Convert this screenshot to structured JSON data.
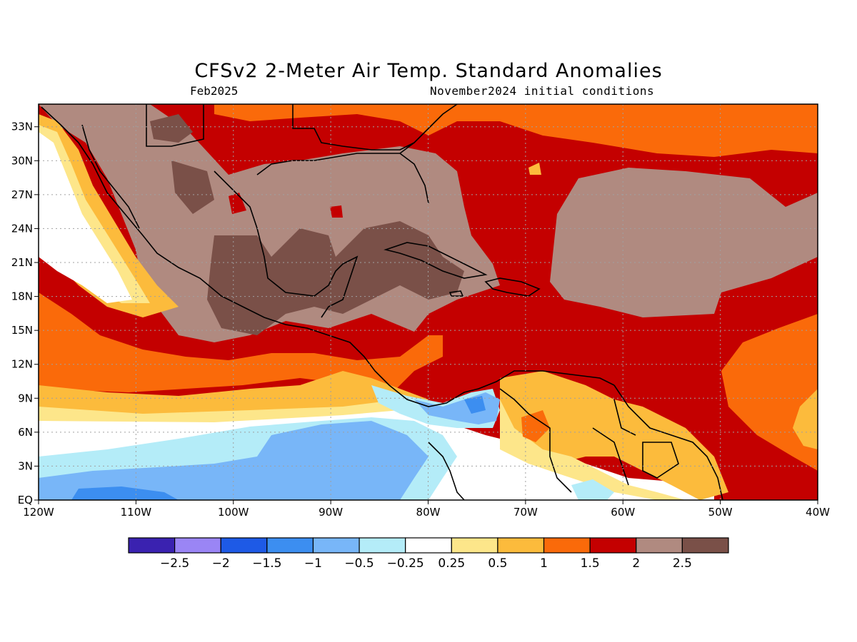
{
  "header": {
    "title": "CFSv2 2-Meter Air Temp. Standard Anomalies",
    "valid_month": "Feb2025",
    "initial_conditions": "November2024 initial conditions"
  },
  "map": {
    "lon_range": [
      -120,
      -40
    ],
    "lat_range": [
      0,
      35
    ],
    "x_ticks": [
      {
        "value": -120,
        "label": "120W"
      },
      {
        "value": -110,
        "label": "110W"
      },
      {
        "value": -100,
        "label": "100W"
      },
      {
        "value": -90,
        "label": "90W"
      },
      {
        "value": -80,
        "label": "80W"
      },
      {
        "value": -70,
        "label": "70W"
      },
      {
        "value": -60,
        "label": "60W"
      },
      {
        "value": -50,
        "label": "50W"
      },
      {
        "value": -40,
        "label": "40W"
      }
    ],
    "y_ticks": [
      {
        "value": 0,
        "label": "EQ"
      },
      {
        "value": 3,
        "label": "3N"
      },
      {
        "value": 6,
        "label": "6N"
      },
      {
        "value": 9,
        "label": "9N"
      },
      {
        "value": 12,
        "label": "12N"
      },
      {
        "value": 15,
        "label": "15N"
      },
      {
        "value": 18,
        "label": "18N"
      },
      {
        "value": 21,
        "label": "21N"
      },
      {
        "value": 24,
        "label": "24N"
      },
      {
        "value": 27,
        "label": "27N"
      },
      {
        "value": 30,
        "label": "30N"
      },
      {
        "value": 33,
        "label": "33N"
      }
    ],
    "grid": "dotted"
  },
  "colorbar": {
    "colors": [
      "#3a22b0",
      "#9a85f5",
      "#1e5ae6",
      "#3c8ef0",
      "#78b6f8",
      "#b4ecf8",
      "#ffffff",
      "#fde68a",
      "#fcbb3c",
      "#fa6a0a",
      "#c40000",
      "#b08a80",
      "#7a5048"
    ],
    "labels": [
      "-2.5",
      "-2",
      "-1.5",
      "-1",
      "-0.5",
      "-0.25",
      "0.25",
      "0.5",
      "1",
      "1.5",
      "2",
      "2.5"
    ]
  }
}
